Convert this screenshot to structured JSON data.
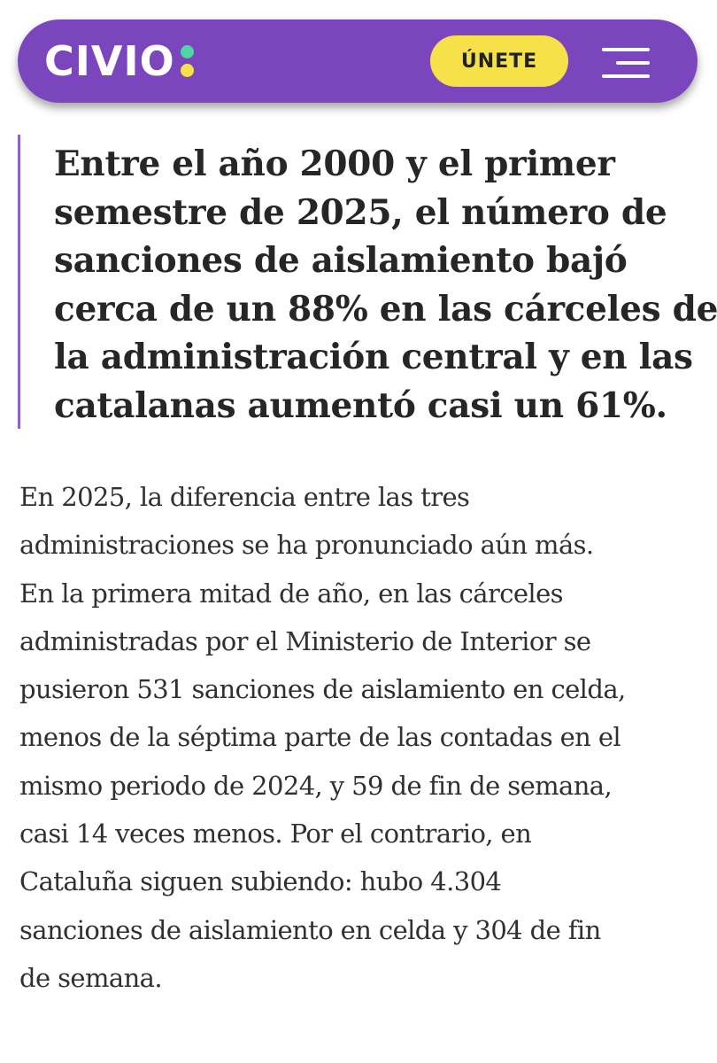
{
  "header": {
    "logo_text": "CIVIO",
    "logo_dot_colors": [
      "#4cd7a3",
      "#f7e14b"
    ],
    "join_label": "ÚNETE",
    "menu_icon": "hamburger-menu-icon",
    "brand_color": "#7b46bd",
    "accent_color": "#f7e14b"
  },
  "article": {
    "pullquote_lines": [
      "Entre el año 2000 y el primer",
      "semestre de 2025, el número de",
      "sanciones de aislamiento bajó",
      "cerca de un 88% en las cárceles de",
      "la administración central y en las",
      "catalanas aumentó casi un 61%."
    ],
    "paragraph_lines": [
      "En 2025, la diferencia entre las tres",
      "administraciones se ha pronunciado aún más.",
      "En la primera mitad de año, en las cárceles",
      "administradas por el Ministerio de Interior se",
      "pusieron 531 sanciones de aislamiento en celda,",
      "menos de la séptima parte de las contadas en el",
      "mismo periodo de 2024, y 59 de fin de semana,",
      "casi 14 veces menos. Por el contrario, en",
      "Cataluña siguen subiendo: hubo 4.304",
      "sanciones de aislamiento en celda y 304 de fin",
      "de semana."
    ]
  }
}
